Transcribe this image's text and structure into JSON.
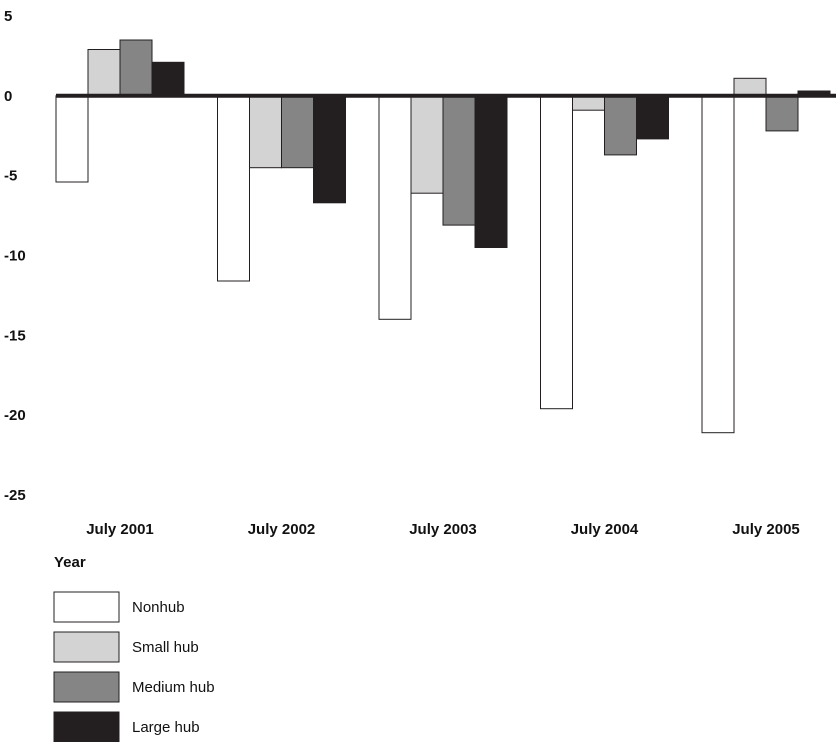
{
  "chart_data": {
    "type": "bar",
    "title": "",
    "xlabel": "Year",
    "ylabel": "",
    "ylim": [
      -25,
      5
    ],
    "yticks": [
      5,
      0,
      -5,
      -10,
      -15,
      -20,
      -25
    ],
    "categories": [
      "July 2001",
      "July 2002",
      "July 2003",
      "July 2004",
      "July 2005"
    ],
    "series": [
      {
        "name": "Nonhub",
        "color": "#ffffff",
        "values": [
          -5.4,
          -11.6,
          -14.0,
          -19.6,
          -21.1
        ]
      },
      {
        "name": "Small hub",
        "color": "#d3d3d3",
        "values": [
          2.9,
          -4.5,
          -6.1,
          -0.9,
          1.1
        ]
      },
      {
        "name": "Medium hub",
        "color": "#858585",
        "values": [
          3.5,
          -4.5,
          -8.1,
          -3.7,
          -2.2
        ]
      },
      {
        "name": "Large hub",
        "color": "#231f20",
        "values": [
          2.1,
          -6.7,
          -9.5,
          -2.7,
          0.3
        ]
      }
    ],
    "grid": false,
    "legend_placement": "bottom-left"
  }
}
